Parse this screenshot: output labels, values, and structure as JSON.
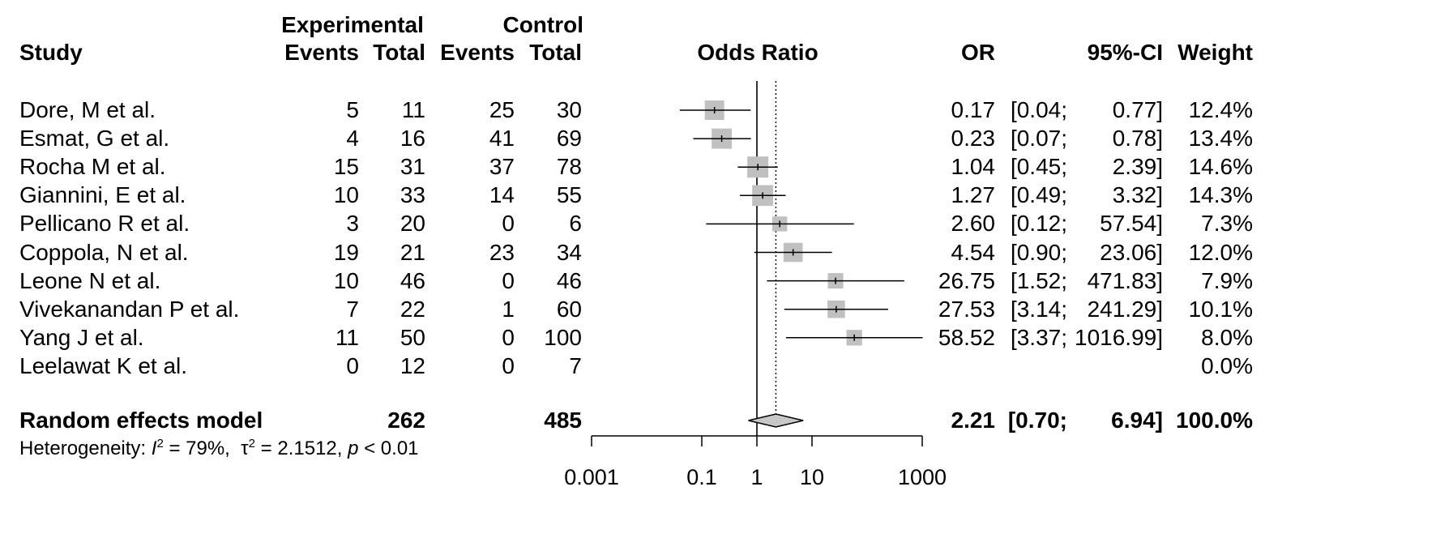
{
  "header": {
    "study": "Study",
    "experimental": "Experimental",
    "control": "Control",
    "events": "Events",
    "total": "Total",
    "odds_ratio": "Odds Ratio",
    "or": "OR",
    "ci": "95%-CI",
    "weight": "Weight"
  },
  "studies": [
    {
      "name": "Dore, M et al.",
      "e_events": "5",
      "e_total": "11",
      "c_events": "25",
      "c_total": "30",
      "or": "0.17",
      "ci_lo": "[0.04;",
      "ci_hi": "0.77]",
      "weight": "12.4%"
    },
    {
      "name": "Esmat, G et al.",
      "e_events": "4",
      "e_total": "16",
      "c_events": "41",
      "c_total": "69",
      "or": "0.23",
      "ci_lo": "[0.07;",
      "ci_hi": "0.78]",
      "weight": "13.4%"
    },
    {
      "name": "Rocha M et al.",
      "e_events": "15",
      "e_total": "31",
      "c_events": "37",
      "c_total": "78",
      "or": "1.04",
      "ci_lo": "[0.45;",
      "ci_hi": "2.39]",
      "weight": "14.6%"
    },
    {
      "name": "Giannini, E et al.",
      "e_events": "10",
      "e_total": "33",
      "c_events": "14",
      "c_total": "55",
      "or": "1.27",
      "ci_lo": "[0.49;",
      "ci_hi": "3.32]",
      "weight": "14.3%"
    },
    {
      "name": "Pellicano R et al.",
      "e_events": "3",
      "e_total": "20",
      "c_events": "0",
      "c_total": "6",
      "or": "2.60",
      "ci_lo": "[0.12;",
      "ci_hi": "57.54]",
      "weight": "7.3%"
    },
    {
      "name": "Coppola, N et al.",
      "e_events": "19",
      "e_total": "21",
      "c_events": "23",
      "c_total": "34",
      "or": "4.54",
      "ci_lo": "[0.90;",
      "ci_hi": "23.06]",
      "weight": "12.0%"
    },
    {
      "name": "Leone N et al.",
      "e_events": "10",
      "e_total": "46",
      "c_events": "0",
      "c_total": "46",
      "or": "26.75",
      "ci_lo": "[1.52;",
      "ci_hi": "471.83]",
      "weight": "7.9%"
    },
    {
      "name": "Vivekanandan P et al.",
      "e_events": "7",
      "e_total": "22",
      "c_events": "1",
      "c_total": "60",
      "or": "27.53",
      "ci_lo": "[3.14;",
      "ci_hi": "241.29]",
      "weight": "10.1%"
    },
    {
      "name": "Yang J et al.",
      "e_events": "11",
      "e_total": "50",
      "c_events": "0",
      "c_total": "100",
      "or": "58.52",
      "ci_lo": "[3.37;",
      "ci_hi": "1016.99]",
      "weight": "8.0%"
    },
    {
      "name": "Leelawat K et al.",
      "e_events": "0",
      "e_total": "12",
      "c_events": "0",
      "c_total": "7",
      "or": "",
      "ci_lo": "",
      "ci_hi": "",
      "weight": "0.0%"
    }
  ],
  "summary": {
    "label": "Random effects model",
    "e_total": "262",
    "c_total": "485",
    "or": "2.21",
    "ci_lo": "[0.70;",
    "ci_hi": "6.94]",
    "weight": "100.0%"
  },
  "heterogeneity": {
    "prefix": "Heterogeneity: ",
    "i_sym": "I",
    "i_val": " = 79%,  ",
    "tau_sym": "τ",
    "tau_val": " = 2.1512, ",
    "p_sym": "p",
    "p_val": " < 0.01"
  },
  "chart_data": {
    "type": "forest",
    "xlabel": "",
    "ylabel": "",
    "x_scale": "log10",
    "xlim": [
      0.001,
      1000
    ],
    "ticks": [
      0.001,
      0.1,
      1,
      10,
      1000
    ],
    "tick_labels": [
      "0.001",
      "0.1",
      "1",
      "10",
      "1000"
    ],
    "null_line": 1,
    "summary_line": 2.21,
    "studies": [
      {
        "name": "Dore, M et al.",
        "or": 0.17,
        "lo": 0.04,
        "hi": 0.77,
        "weight": 12.4
      },
      {
        "name": "Esmat, G et al.",
        "or": 0.23,
        "lo": 0.07,
        "hi": 0.78,
        "weight": 13.4
      },
      {
        "name": "Rocha M et al.",
        "or": 1.04,
        "lo": 0.45,
        "hi": 2.39,
        "weight": 14.6
      },
      {
        "name": "Giannini, E et al.",
        "or": 1.27,
        "lo": 0.49,
        "hi": 3.32,
        "weight": 14.3
      },
      {
        "name": "Pellicano R et al.",
        "or": 2.6,
        "lo": 0.12,
        "hi": 57.54,
        "weight": 7.3
      },
      {
        "name": "Coppola, N et al.",
        "or": 4.54,
        "lo": 0.9,
        "hi": 23.06,
        "weight": 12.0
      },
      {
        "name": "Leone N et al.",
        "or": 26.75,
        "lo": 1.52,
        "hi": 471.83,
        "weight": 7.9
      },
      {
        "name": "Vivekanandan P et al.",
        "or": 27.53,
        "lo": 3.14,
        "hi": 241.29,
        "weight": 10.1
      },
      {
        "name": "Yang J et al.",
        "or": 58.52,
        "lo": 3.37,
        "hi": 1016.99,
        "weight": 8.0
      },
      {
        "name": "Leelawat K et al.",
        "or": null,
        "lo": null,
        "hi": null,
        "weight": 0.0
      }
    ],
    "summary": {
      "name": "Random effects model",
      "or": 2.21,
      "lo": 0.7,
      "hi": 6.94,
      "weight": 100.0
    },
    "colors": {
      "box": "#c0c0c0",
      "diamond": "#c8c8c8",
      "line": "#000000"
    }
  }
}
